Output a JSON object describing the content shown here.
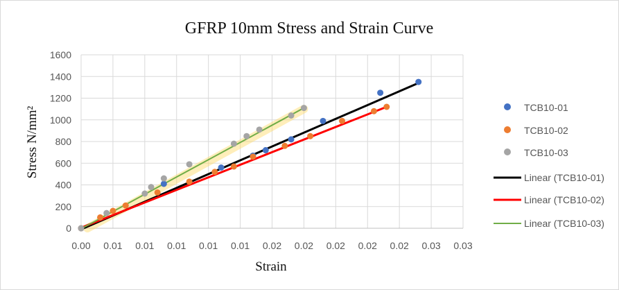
{
  "chart_data": {
    "type": "scatter",
    "title": "GFRP 10mm Stress and Strain Curve",
    "xlabel": "Strain",
    "ylabel": "Stress N/mm²",
    "xlim": [
      0,
      0.03
    ],
    "ylim": [
      0,
      1600
    ],
    "x_tick_labels": [
      "0.00",
      "0.01",
      "0.01",
      "0.01",
      "0.01",
      "0.01",
      "0.02",
      "0.02",
      "0.02",
      "0.02",
      "0.02",
      "0.03",
      "0.03"
    ],
    "y_ticks": [
      0,
      200,
      400,
      600,
      800,
      1000,
      1200,
      1400,
      1600
    ],
    "grid": true,
    "legend_position": "right",
    "series": [
      {
        "name": "TCB10-01",
        "color": "#4472c4",
        "x": [
          0,
          0.0065,
          0.011,
          0.0135,
          0.0145,
          0.0165,
          0.019,
          0.0235,
          0.0265
        ],
        "y": [
          0,
          410,
          560,
          670,
          720,
          820,
          990,
          1250,
          1350
        ]
      },
      {
        "name": "TCB10-02",
        "color": "#ed7d31",
        "x": [
          0,
          0.0015,
          0.0025,
          0.0035,
          0.006,
          0.0085,
          0.0105,
          0.012,
          0.0135,
          0.016,
          0.018,
          0.0205,
          0.023,
          0.024
        ],
        "y": [
          0,
          100,
          160,
          210,
          330,
          430,
          520,
          570,
          660,
          760,
          850,
          990,
          1080,
          1120
        ]
      },
      {
        "name": "TCB10-03",
        "color": "#a5a5a5",
        "x": [
          0,
          0.002,
          0.005,
          0.0055,
          0.0065,
          0.0085,
          0.012,
          0.013,
          0.014,
          0.0165,
          0.0175
        ],
        "y": [
          0,
          140,
          320,
          380,
          460,
          590,
          780,
          850,
          910,
          1040,
          1110
        ]
      }
    ],
    "trendlines": [
      {
        "name": "Linear (TCB10-01)",
        "color": "#000000",
        "x": [
          0,
          0.0265
        ],
        "y": [
          -10,
          1340
        ]
      },
      {
        "name": "Linear (TCB10-02)",
        "color": "#ff0000",
        "x": [
          0,
          0.024
        ],
        "y": [
          5,
          1120
        ]
      },
      {
        "name": "Linear (TCB10-03)",
        "color": "#70ad47",
        "x": [
          0,
          0.0175
        ],
        "y": [
          -5,
          1110
        ]
      }
    ],
    "highlight_band": {
      "color": "#ffd966",
      "x": [
        0.0005,
        0.0175
      ],
      "y": [
        0,
        1100
      ]
    }
  }
}
